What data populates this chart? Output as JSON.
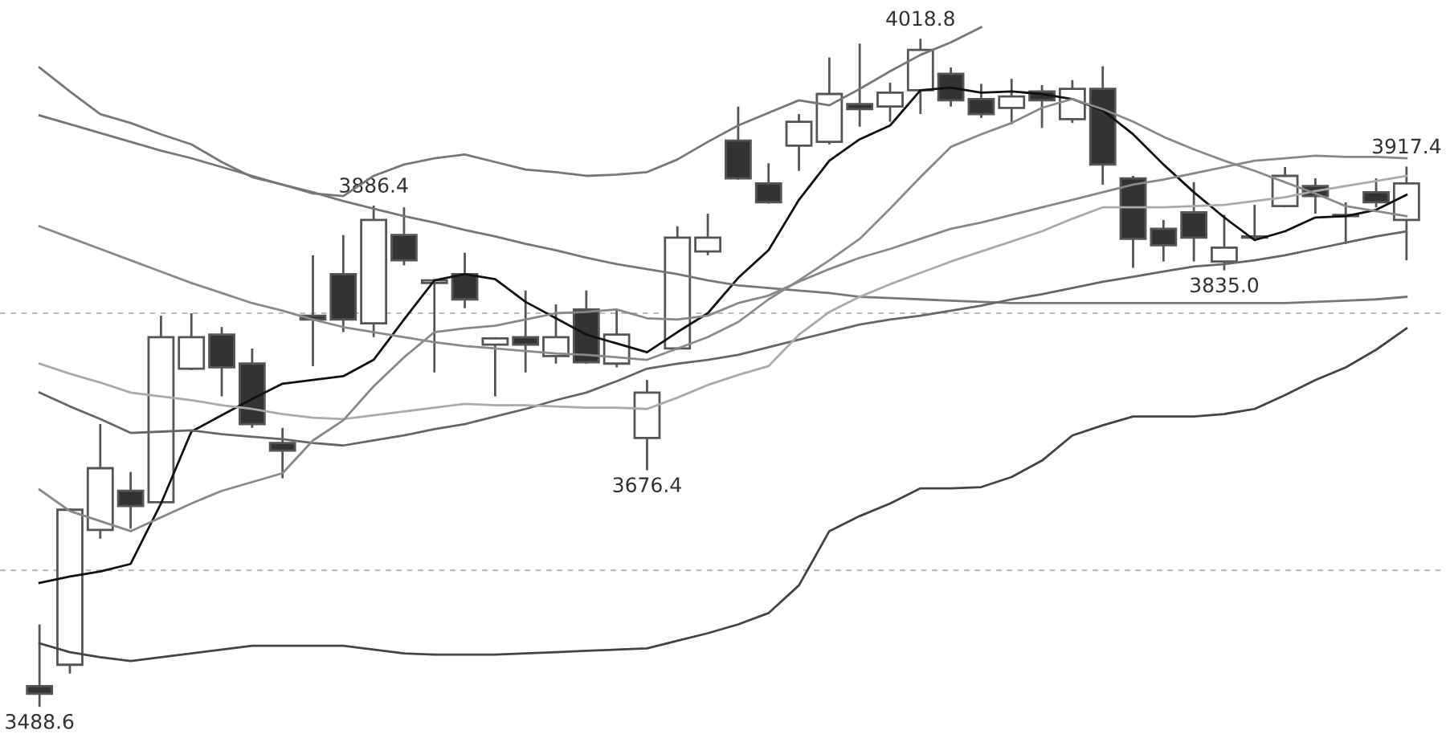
{
  "chart_data": {
    "type": "candlestick",
    "categories": [
      null,
      null,
      null,
      null,
      null,
      null,
      null,
      null,
      null,
      null,
      null,
      null,
      null,
      null,
      null,
      null,
      null,
      null,
      null,
      null,
      null,
      null,
      null,
      null,
      null,
      null,
      null,
      null,
      null,
      null,
      null,
      null,
      null,
      null,
      null,
      null,
      null,
      null,
      null,
      null,
      null,
      null,
      null,
      null,
      null,
      null
    ],
    "ohlc": [
      [
        3505,
        3554,
        3488.6,
        3499
      ],
      [
        3522,
        3646,
        3515,
        3645
      ],
      [
        3629,
        3713,
        3622,
        3678
      ],
      [
        3660,
        3675,
        3630,
        3648
      ],
      [
        3651,
        3799,
        3650,
        3782
      ],
      [
        3757,
        3801,
        3756,
        3782
      ],
      [
        3784,
        3790,
        3735,
        3758
      ],
      [
        3761,
        3773,
        3710,
        3713
      ],
      [
        3698,
        3710,
        3670,
        3692
      ],
      [
        3799,
        3847,
        3759,
        3796
      ],
      [
        3832,
        3863,
        3786,
        3796
      ],
      [
        3793,
        3886.4,
        3782,
        3875
      ],
      [
        3863,
        3885,
        3839,
        3843
      ],
      [
        3825,
        3828,
        3754,
        3827
      ],
      [
        3832,
        3849,
        3805,
        3812
      ],
      [
        3776,
        3782,
        3735,
        3781
      ],
      [
        3782,
        3819,
        3754,
        3776
      ],
      [
        3767,
        3808,
        3761,
        3782
      ],
      [
        3804,
        3819,
        3761,
        3762
      ],
      [
        3761,
        3804,
        3758,
        3784
      ],
      [
        3702,
        3748,
        3676.4,
        3738
      ],
      [
        3773,
        3870,
        3772,
        3861
      ],
      [
        3850,
        3880,
        3847,
        3861
      ],
      [
        3938,
        3965,
        3907,
        3908
      ],
      [
        3904,
        3920,
        3888,
        3889
      ],
      [
        3934,
        3959,
        3914,
        3953
      ],
      [
        3937,
        4004,
        3935,
        3975
      ],
      [
        3967,
        4015,
        3949,
        3963
      ],
      [
        3965,
        3984,
        3953,
        3976
      ],
      [
        3978,
        4018.8,
        3959,
        4010
      ],
      [
        3991,
        3996,
        3965,
        3970
      ],
      [
        3971,
        3983,
        3956,
        3959
      ],
      [
        3964,
        3987,
        3951,
        3973
      ],
      [
        3977,
        3982,
        3948,
        3970
      ],
      [
        3955,
        3986,
        3952,
        3979
      ],
      [
        3979,
        3997,
        3903,
        3919
      ],
      [
        3908,
        3910,
        3837,
        3860
      ],
      [
        3868,
        3875,
        3842,
        3855
      ],
      [
        3881,
        3905,
        3842,
        3861
      ],
      [
        3842,
        3879,
        3835.0,
        3853
      ],
      [
        3861,
        3887,
        3860,
        3862
      ],
      [
        3886,
        3917,
        3885,
        3910
      ],
      [
        3902,
        3908,
        3880,
        3894
      ],
      [
        3879,
        3889,
        3856,
        3878
      ],
      [
        3897,
        3908,
        3885,
        3889
      ],
      [
        3875,
        3917.4,
        3843,
        3904
      ]
    ],
    "colors": [
      "#333333",
      "#ffffff",
      "#ffffff",
      "#333333",
      "#ffffff",
      "#ffffff",
      "#333333",
      "#333333",
      "#333333",
      "#333333",
      "#333333",
      "#ffffff",
      "#333333",
      "#ffffff",
      "#333333",
      "#ffffff",
      "#333333",
      "#ffffff",
      "#333333",
      "#ffffff",
      "#ffffff",
      "#ffffff",
      "#ffffff",
      "#333333",
      "#333333",
      "#ffffff",
      "#ffffff",
      "#333333",
      "#ffffff",
      "#ffffff",
      "#333333",
      "#333333",
      "#ffffff",
      "#333333",
      "#ffffff",
      "#333333",
      "#333333",
      "#333333",
      "#333333",
      "#ffffff",
      "#ffffff",
      "#ffffff",
      "#333333",
      "#333333",
      "#333333",
      "#ffffff"
    ],
    "series": [
      {
        "type": "line",
        "color": "#111111",
        "values": [
          3587,
          3592,
          3596,
          3602,
          3650,
          3707,
          3720,
          3733,
          3745,
          3748,
          3751,
          3764,
          3796,
          3827,
          3832,
          3828,
          3810,
          3797,
          3784,
          3777,
          3770,
          3786,
          3801,
          3829,
          3851,
          3891,
          3922,
          3939,
          3950,
          3978,
          3980,
          3976,
          3977,
          3975,
          3971,
          3962,
          3943,
          3919,
          3897,
          3877,
          3859,
          3866,
          3877,
          3878,
          3883,
          3895
        ]
      },
      {
        "type": "line",
        "color": "#777777",
        "values": [
          3996,
          3977,
          3959,
          3952,
          3943,
          3935,
          3921,
          3909,
          3903,
          3896,
          3894,
          3910,
          3919,
          3924,
          3927,
          3921,
          3915,
          3913,
          3910,
          3911,
          3913,
          3923,
          3937,
          3950,
          3960,
          3970,
          3966,
          3979,
          3993,
          4006,
          4016,
          4028,
          null,
          null,
          null,
          null,
          null,
          null,
          null,
          null,
          null,
          null,
          null,
          null,
          null,
          null
        ]
      },
      {
        "type": "line",
        "color": "#777777",
        "values": [
          3958,
          3951,
          3944,
          3937,
          3930,
          3924,
          3917,
          3910,
          3903,
          3897,
          3890,
          3884,
          3878,
          3873,
          3867,
          3862,
          3856,
          3851,
          3845,
          3840,
          3836,
          3832,
          3827,
          3823,
          3821,
          3819,
          3817,
          3814,
          3813,
          3812,
          3811,
          3810,
          3809,
          3809,
          3809,
          3809,
          3809,
          3809,
          3809,
          3809,
          3809,
          3809,
          3810,
          3811,
          3812,
          3814
        ]
      },
      {
        "type": "line",
        "color": "#444444",
        "values": [
          3539,
          3532,
          3528,
          3525,
          3528,
          3531,
          3534,
          3537,
          3537,
          3537,
          3537,
          3534,
          3531,
          3530,
          3530,
          3530,
          3531,
          3532,
          3533,
          3534,
          3535,
          3541,
          3547,
          3554,
          3563,
          3585,
          3628,
          3640,
          3650,
          3662,
          3662,
          3663,
          3671,
          3684,
          3704,
          3712,
          3719,
          3719,
          3719,
          3721,
          3725,
          3736,
          3748,
          3758,
          3772,
          3789
        ]
      },
      {
        "type": "line",
        "color": "#666666",
        "values": [
          3738,
          3727,
          3717,
          3706,
          3707,
          3708,
          3705,
          3703,
          3701,
          3698,
          3696,
          3700,
          3704,
          3709,
          3713,
          3719,
          3725,
          3732,
          3738,
          3747,
          3757,
          3761,
          3764,
          3768,
          3774,
          3780,
          3786,
          3792,
          3796,
          3799,
          3803,
          3807,
          3812,
          3816,
          3821,
          3826,
          3830,
          3834,
          3838,
          3840,
          3843,
          3847,
          3852,
          3857,
          3862,
          3866
        ]
      },
      {
        "type": "line",
        "color": "#aaaaaa",
        "values": [
          3761,
          3753,
          3746,
          3738,
          3735,
          3732,
          3728,
          3725,
          3721,
          3718,
          3717,
          3720,
          3723,
          3726,
          3729,
          3728,
          3728,
          3727,
          3726,
          3726,
          3725,
          3734,
          3744,
          3752,
          3759,
          3784,
          3802,
          3814,
          3824,
          3833,
          3842,
          3850,
          3858,
          3866,
          3876,
          3885,
          3885,
          3885,
          3886,
          3887,
          3890,
          3893,
          3898,
          3902,
          3906,
          3910
        ]
      },
      {
        "type": "line",
        "color": "#888888",
        "values": [
          3661,
          3644,
          3636,
          3628,
          3639,
          3650,
          3660,
          3667,
          3674,
          3700,
          3716,
          3743,
          3766,
          3786,
          3789,
          3791,
          3796,
          3801,
          3802,
          3804,
          3797,
          3796,
          3799,
          3809,
          3815,
          3826,
          3836,
          3845,
          3852,
          3860,
          3868,
          3873,
          3879,
          3885,
          3891,
          3897,
          3903,
          3907,
          3912,
          3917,
          3922,
          3924,
          3926,
          3925,
          3925,
          3924
        ]
      },
      {
        "type": "line",
        "color": "#8a8a8a",
        "values": [
          3870,
          3861,
          3852,
          3843,
          3834,
          3825,
          3817,
          3809,
          3803,
          3796,
          3790,
          3786,
          3782,
          3778,
          3775,
          3773,
          3771,
          3769,
          3768,
          3766,
          3764,
          3773,
          3782,
          3794,
          3812,
          3827,
          3843,
          3860,
          3884,
          3909,
          3933,
          3943,
          3952,
          3964,
          3971,
          3963,
          3953,
          3941,
          3931,
          3922,
          3914,
          3905,
          3896,
          3886,
          3882,
          3878
        ]
      }
    ],
    "tick_labels": false,
    "ref_lines": [
      {
        "axis": "y",
        "value": 3801,
        "color": "#bbbbbb",
        "line_style": "dashed"
      },
      {
        "axis": "y",
        "value": 3597,
        "color": "#bbbbbb",
        "line_style": "dashed"
      }
    ],
    "annotations": [
      {
        "text": "4018.8",
        "y": 4018.8
      },
      {
        "text": "3886.4",
        "y": 3886.4
      },
      {
        "text": "3676.4",
        "y": 3676.4
      },
      {
        "text": "3835.0",
        "y": 3835.0
      },
      {
        "text": "3917.4",
        "y": 3917.4
      },
      {
        "text": "3488.6",
        "y": 3488.6
      }
    ]
  }
}
